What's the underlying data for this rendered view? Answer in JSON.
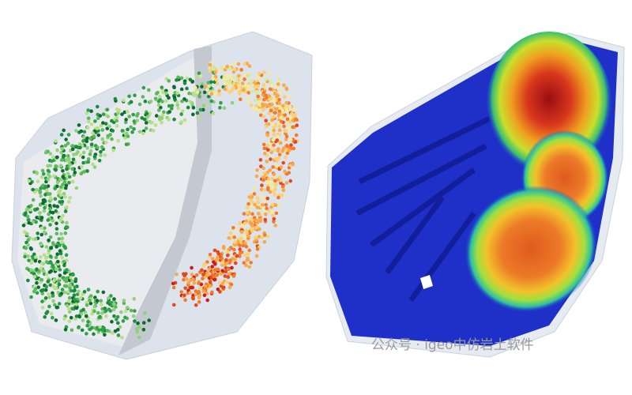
{
  "watermark": "公众号 · igeo中仿岩土软件"
}
